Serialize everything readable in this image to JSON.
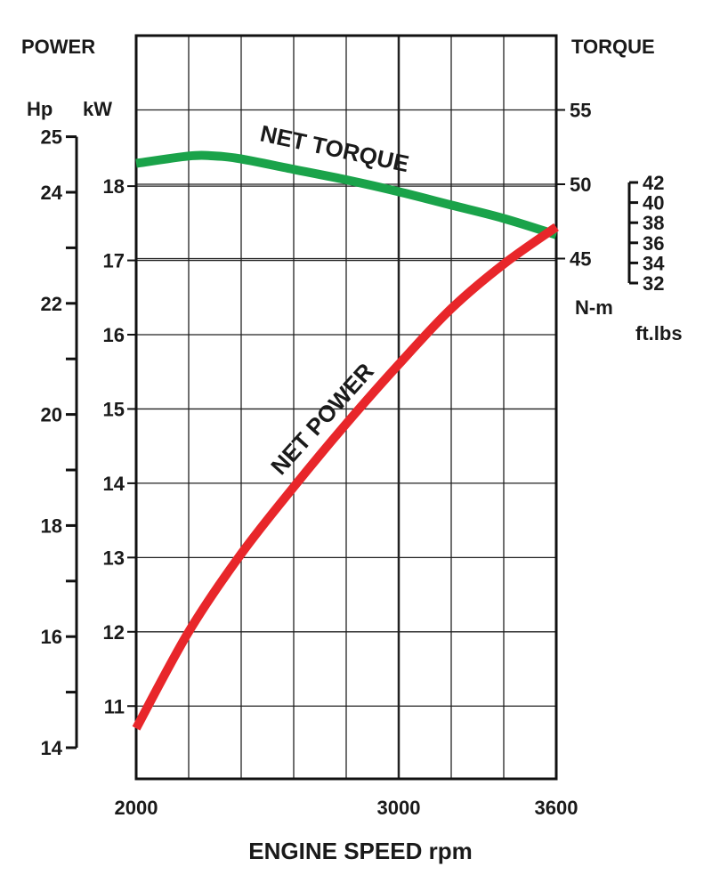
{
  "chart_data": {
    "type": "line",
    "xlabel": "ENGINE SPEED rpm",
    "x_ticks": [
      2000,
      3000,
      3600
    ],
    "xlim": [
      2000,
      3600
    ],
    "left_title": "POWER",
    "right_title": "TORQUE",
    "hp_axis": {
      "unit": "Hp",
      "range": [
        14,
        25
      ],
      "labels": [
        14,
        16,
        18,
        20,
        22,
        24,
        25
      ],
      "minor_ticks": [
        14,
        15,
        16,
        17,
        18,
        19,
        20,
        21,
        22,
        23,
        24,
        25
      ]
    },
    "kw_axis": {
      "unit": "kW",
      "ylim": [
        10.2,
        19.7
      ],
      "labels": [
        11,
        12,
        13,
        14,
        15,
        16,
        17,
        18
      ]
    },
    "nm_axis": {
      "unit": "N-m",
      "labels": [
        45,
        50,
        55
      ]
    },
    "ftlb_axis": {
      "unit": "ft.lbs",
      "range": [
        32,
        42
      ],
      "labels": [
        32,
        34,
        36,
        38,
        40,
        42
      ]
    },
    "series": [
      {
        "name": "NET TORQUE",
        "color": "#1aa34a",
        "x": [
          2000,
          2200,
          2300,
          2400,
          2600,
          2800,
          3000,
          3200,
          3400,
          3600
        ],
        "y_nm": [
          51.4,
          51.9,
          51.9,
          51.7,
          51.0,
          50.3,
          49.5,
          48.6,
          47.7,
          46.6
        ]
      },
      {
        "name": "NET POWER",
        "color": "#e8262a",
        "x": [
          2000,
          2200,
          2400,
          2600,
          2800,
          3000,
          3200,
          3400,
          3600
        ],
        "y_kw": [
          10.7,
          12.0,
          13.05,
          13.95,
          14.8,
          15.6,
          16.35,
          16.95,
          17.45
        ]
      }
    ]
  }
}
